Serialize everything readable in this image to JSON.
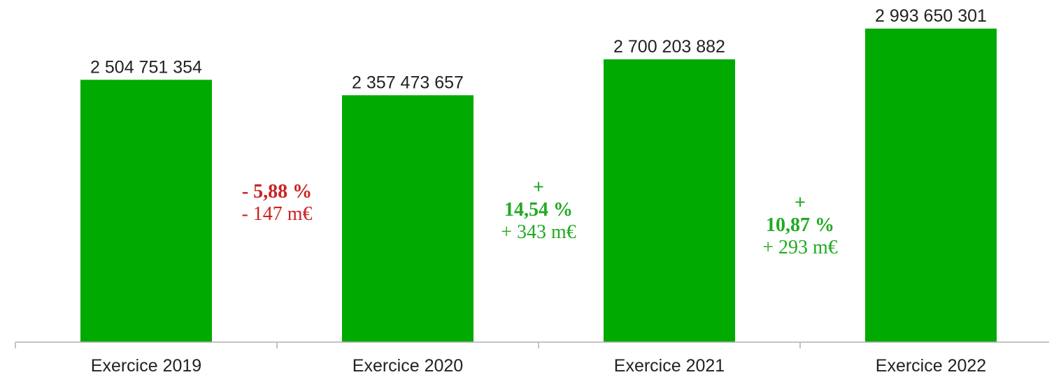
{
  "chart_data": {
    "type": "bar",
    "title": "",
    "xlabel": "",
    "ylabel": "",
    "categories": [
      "Exercice 2019",
      "Exercice 2020",
      "Exercice 2021",
      "Exercice 2022"
    ],
    "values": [
      2504751354,
      2357473657,
      2700203882,
      2993650301
    ],
    "value_labels": [
      "2 504 751 354",
      "2 357 473 657",
      "2 700 203 882",
      "2 993 650 301"
    ],
    "ylim": [
      0,
      3200000000
    ],
    "grid": false,
    "legend": "none",
    "bar_color": "#00aa00",
    "annotations": [
      {
        "between": [
          "Exercice 2019",
          "Exercice 2020"
        ],
        "sign": "",
        "percent": "- 5,88 %",
        "amount": "- 147 m€",
        "color": "#cc2222"
      },
      {
        "between": [
          "Exercice 2020",
          "Exercice 2021"
        ],
        "sign": "+",
        "percent": "14,54 %",
        "amount": "+ 343 m€",
        "color": "#22aa22"
      },
      {
        "between": [
          "Exercice 2021",
          "Exercice 2022"
        ],
        "sign": "+",
        "percent": "10,87 %",
        "amount": "+ 293 m€",
        "color": "#22aa22"
      }
    ]
  }
}
